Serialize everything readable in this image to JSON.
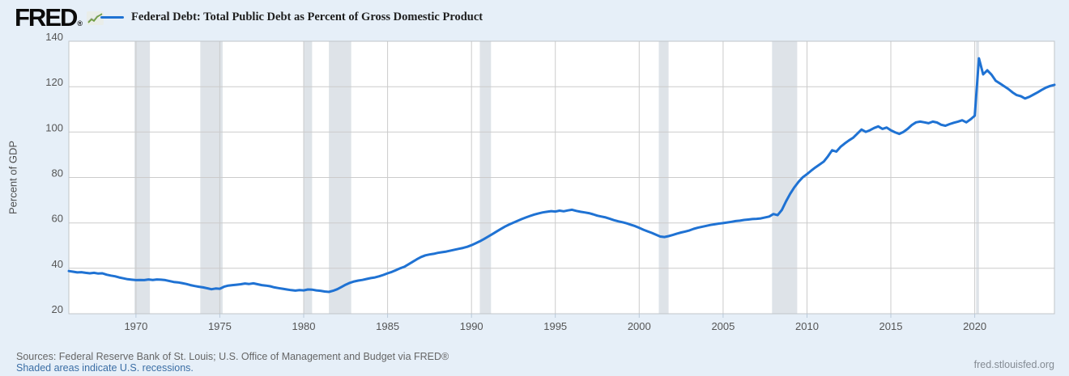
{
  "header": {
    "logo_text": "FRED",
    "logo_reg": "®",
    "legend_swatch_color": "#1f72d3"
  },
  "footer": {
    "sources_text": "Sources: Federal Reserve Bank of St. Louis; U.S. Office of Management and Budget via FRED®",
    "recession_note": "Shaded areas indicate U.S. recessions.",
    "watermark": "fred.stlouisfed.org"
  },
  "colors": {
    "page_bg": "#e6eff8",
    "plot_bg": "#ffffff",
    "grid": "#cbcbcb",
    "plot_border": "#c0c4c8",
    "recession_band": "#dee3e8",
    "line": "#1f72d3",
    "tick_text": "#555555",
    "tick_mark": "#b9c9d9"
  },
  "chart_data": {
    "type": "line",
    "title": "Federal Debt: Total Public Debt as Percent of Gross Domestic Product",
    "ylabel": "Percent of GDP",
    "xlabel": "",
    "x_unit": "year, quarterly observations",
    "xlim": [
      1966.0,
      2024.75
    ],
    "ylim": [
      20,
      140
    ],
    "x_ticks": [
      1970,
      1975,
      1980,
      1985,
      1990,
      1995,
      2000,
      2005,
      2010,
      2015,
      2020
    ],
    "y_ticks": [
      20,
      40,
      60,
      80,
      100,
      120,
      140
    ],
    "grid": true,
    "legend_position": "top",
    "recession_bands": [
      [
        1969.917,
        1970.833
      ],
      [
        1973.833,
        1975.167
      ],
      [
        1980.0,
        1980.5
      ],
      [
        1981.5,
        1982.833
      ],
      [
        1990.5,
        1991.167
      ],
      [
        2001.167,
        2001.75
      ],
      [
        2007.917,
        2009.417
      ],
      [
        2020.083,
        2020.25
      ]
    ],
    "series": [
      {
        "name": "Federal Debt: Total Public Debt as Percent of Gross Domestic Product",
        "points": [
          [
            1966.0,
            38.8
          ],
          [
            1966.25,
            38.5
          ],
          [
            1966.5,
            38.2
          ],
          [
            1966.75,
            38.3
          ],
          [
            1967.0,
            38.0
          ],
          [
            1967.25,
            37.8
          ],
          [
            1967.5,
            38.0
          ],
          [
            1967.75,
            37.7
          ],
          [
            1968.0,
            37.8
          ],
          [
            1968.25,
            37.2
          ],
          [
            1968.5,
            36.8
          ],
          [
            1968.75,
            36.5
          ],
          [
            1969.0,
            36.0
          ],
          [
            1969.25,
            35.6
          ],
          [
            1969.5,
            35.2
          ],
          [
            1969.75,
            35.0
          ],
          [
            1970.0,
            34.8
          ],
          [
            1970.25,
            34.9
          ],
          [
            1970.5,
            34.8
          ],
          [
            1970.75,
            35.1
          ],
          [
            1971.0,
            34.9
          ],
          [
            1971.25,
            35.1
          ],
          [
            1971.5,
            35.0
          ],
          [
            1971.75,
            34.8
          ],
          [
            1972.0,
            34.4
          ],
          [
            1972.25,
            34.0
          ],
          [
            1972.5,
            33.8
          ],
          [
            1972.75,
            33.5
          ],
          [
            1973.0,
            33.1
          ],
          [
            1973.25,
            32.6
          ],
          [
            1973.5,
            32.2
          ],
          [
            1973.75,
            31.9
          ],
          [
            1974.0,
            31.6
          ],
          [
            1974.25,
            31.2
          ],
          [
            1974.5,
            30.8
          ],
          [
            1974.75,
            31.1
          ],
          [
            1975.0,
            31.0
          ],
          [
            1975.25,
            31.9
          ],
          [
            1975.5,
            32.4
          ],
          [
            1975.75,
            32.6
          ],
          [
            1976.0,
            32.8
          ],
          [
            1976.25,
            33.0
          ],
          [
            1976.5,
            33.3
          ],
          [
            1976.75,
            33.1
          ],
          [
            1977.0,
            33.4
          ],
          [
            1977.25,
            33.0
          ],
          [
            1977.5,
            32.6
          ],
          [
            1977.75,
            32.4
          ],
          [
            1978.0,
            32.1
          ],
          [
            1978.25,
            31.6
          ],
          [
            1978.5,
            31.3
          ],
          [
            1978.75,
            31.0
          ],
          [
            1979.0,
            30.7
          ],
          [
            1979.25,
            30.4
          ],
          [
            1979.5,
            30.2
          ],
          [
            1979.75,
            30.4
          ],
          [
            1980.0,
            30.3
          ],
          [
            1980.25,
            30.7
          ],
          [
            1980.5,
            30.6
          ],
          [
            1980.75,
            30.3
          ],
          [
            1981.0,
            30.1
          ],
          [
            1981.25,
            29.8
          ],
          [
            1981.5,
            29.6
          ],
          [
            1981.75,
            30.1
          ],
          [
            1982.0,
            30.8
          ],
          [
            1982.25,
            31.8
          ],
          [
            1982.5,
            32.8
          ],
          [
            1982.75,
            33.6
          ],
          [
            1983.0,
            34.2
          ],
          [
            1983.25,
            34.6
          ],
          [
            1983.5,
            34.9
          ],
          [
            1983.75,
            35.3
          ],
          [
            1984.0,
            35.7
          ],
          [
            1984.25,
            36.0
          ],
          [
            1984.5,
            36.5
          ],
          [
            1984.75,
            37.1
          ],
          [
            1985.0,
            37.8
          ],
          [
            1985.25,
            38.4
          ],
          [
            1985.5,
            39.2
          ],
          [
            1985.75,
            40.0
          ],
          [
            1986.0,
            40.7
          ],
          [
            1986.25,
            41.8
          ],
          [
            1986.5,
            42.9
          ],
          [
            1986.75,
            44.0
          ],
          [
            1987.0,
            45.0
          ],
          [
            1987.25,
            45.7
          ],
          [
            1987.5,
            46.1
          ],
          [
            1987.75,
            46.4
          ],
          [
            1988.0,
            46.8
          ],
          [
            1988.25,
            47.1
          ],
          [
            1988.5,
            47.4
          ],
          [
            1988.75,
            47.8
          ],
          [
            1989.0,
            48.2
          ],
          [
            1989.25,
            48.6
          ],
          [
            1989.5,
            49.0
          ],
          [
            1989.75,
            49.5
          ],
          [
            1990.0,
            50.2
          ],
          [
            1990.25,
            51.0
          ],
          [
            1990.5,
            51.9
          ],
          [
            1990.75,
            52.9
          ],
          [
            1991.0,
            54.0
          ],
          [
            1991.25,
            55.1
          ],
          [
            1991.5,
            56.2
          ],
          [
            1991.75,
            57.3
          ],
          [
            1992.0,
            58.4
          ],
          [
            1992.25,
            59.3
          ],
          [
            1992.5,
            60.1
          ],
          [
            1992.75,
            60.9
          ],
          [
            1993.0,
            61.7
          ],
          [
            1993.25,
            62.4
          ],
          [
            1993.5,
            63.1
          ],
          [
            1993.75,
            63.7
          ],
          [
            1994.0,
            64.2
          ],
          [
            1994.25,
            64.6
          ],
          [
            1994.5,
            64.9
          ],
          [
            1994.75,
            65.2
          ],
          [
            1995.0,
            65.0
          ],
          [
            1995.25,
            65.4
          ],
          [
            1995.5,
            65.1
          ],
          [
            1995.75,
            65.5
          ],
          [
            1996.0,
            65.8
          ],
          [
            1996.25,
            65.3
          ],
          [
            1996.5,
            64.9
          ],
          [
            1996.75,
            64.6
          ],
          [
            1997.0,
            64.3
          ],
          [
            1997.25,
            63.8
          ],
          [
            1997.5,
            63.2
          ],
          [
            1997.75,
            62.8
          ],
          [
            1998.0,
            62.4
          ],
          [
            1998.25,
            61.8
          ],
          [
            1998.5,
            61.2
          ],
          [
            1998.75,
            60.7
          ],
          [
            1999.0,
            60.3
          ],
          [
            1999.25,
            59.8
          ],
          [
            1999.5,
            59.2
          ],
          [
            1999.75,
            58.6
          ],
          [
            2000.0,
            57.8
          ],
          [
            2000.25,
            57.0
          ],
          [
            2000.5,
            56.3
          ],
          [
            2000.75,
            55.6
          ],
          [
            2001.0,
            54.8
          ],
          [
            2001.25,
            54.0
          ],
          [
            2001.5,
            53.8
          ],
          [
            2001.75,
            54.2
          ],
          [
            2002.0,
            54.7
          ],
          [
            2002.25,
            55.3
          ],
          [
            2002.5,
            55.8
          ],
          [
            2002.75,
            56.2
          ],
          [
            2003.0,
            56.7
          ],
          [
            2003.25,
            57.4
          ],
          [
            2003.5,
            57.9
          ],
          [
            2003.75,
            58.3
          ],
          [
            2004.0,
            58.7
          ],
          [
            2004.25,
            59.1
          ],
          [
            2004.5,
            59.4
          ],
          [
            2004.75,
            59.7
          ],
          [
            2005.0,
            59.9
          ],
          [
            2005.25,
            60.2
          ],
          [
            2005.5,
            60.5
          ],
          [
            2005.75,
            60.8
          ],
          [
            2006.0,
            61.0
          ],
          [
            2006.25,
            61.3
          ],
          [
            2006.5,
            61.5
          ],
          [
            2006.75,
            61.7
          ],
          [
            2007.0,
            61.8
          ],
          [
            2007.25,
            62.0
          ],
          [
            2007.5,
            62.4
          ],
          [
            2007.75,
            62.8
          ],
          [
            2008.0,
            63.9
          ],
          [
            2008.25,
            63.4
          ],
          [
            2008.5,
            65.7
          ],
          [
            2008.75,
            69.5
          ],
          [
            2009.0,
            72.8
          ],
          [
            2009.25,
            75.7
          ],
          [
            2009.5,
            78.1
          ],
          [
            2009.75,
            80.1
          ],
          [
            2010.0,
            81.5
          ],
          [
            2010.25,
            83.0
          ],
          [
            2010.5,
            84.4
          ],
          [
            2010.75,
            85.7
          ],
          [
            2011.0,
            87.0
          ],
          [
            2011.25,
            89.3
          ],
          [
            2011.5,
            92.0
          ],
          [
            2011.75,
            91.4
          ],
          [
            2012.0,
            93.5
          ],
          [
            2012.25,
            95.0
          ],
          [
            2012.5,
            96.3
          ],
          [
            2012.75,
            97.5
          ],
          [
            2013.0,
            99.3
          ],
          [
            2013.25,
            101.1
          ],
          [
            2013.5,
            100.1
          ],
          [
            2013.75,
            100.8
          ],
          [
            2014.0,
            101.8
          ],
          [
            2014.25,
            102.5
          ],
          [
            2014.5,
            101.4
          ],
          [
            2014.75,
            102.0
          ],
          [
            2015.0,
            100.8
          ],
          [
            2015.25,
            99.9
          ],
          [
            2015.5,
            99.2
          ],
          [
            2015.75,
            100.1
          ],
          [
            2016.0,
            101.4
          ],
          [
            2016.25,
            103.1
          ],
          [
            2016.5,
            104.3
          ],
          [
            2016.75,
            104.6
          ],
          [
            2017.0,
            104.3
          ],
          [
            2017.25,
            103.9
          ],
          [
            2017.5,
            104.6
          ],
          [
            2017.75,
            104.2
          ],
          [
            2018.0,
            103.2
          ],
          [
            2018.25,
            102.8
          ],
          [
            2018.5,
            103.5
          ],
          [
            2018.75,
            104.1
          ],
          [
            2019.0,
            104.6
          ],
          [
            2019.25,
            105.2
          ],
          [
            2019.5,
            104.3
          ],
          [
            2019.75,
            105.6
          ],
          [
            2020.0,
            107.2
          ],
          [
            2020.25,
            132.5
          ],
          [
            2020.5,
            125.4
          ],
          [
            2020.75,
            127.2
          ],
          [
            2021.0,
            125.3
          ],
          [
            2021.25,
            122.6
          ],
          [
            2021.5,
            121.4
          ],
          [
            2021.75,
            120.2
          ],
          [
            2022.0,
            119.0
          ],
          [
            2022.25,
            117.5
          ],
          [
            2022.5,
            116.3
          ],
          [
            2022.75,
            115.8
          ],
          [
            2023.0,
            114.8
          ],
          [
            2023.25,
            115.5
          ],
          [
            2023.5,
            116.5
          ],
          [
            2023.75,
            117.5
          ],
          [
            2024.0,
            118.6
          ],
          [
            2024.25,
            119.6
          ],
          [
            2024.5,
            120.3
          ],
          [
            2024.75,
            120.8
          ]
        ]
      }
    ]
  }
}
